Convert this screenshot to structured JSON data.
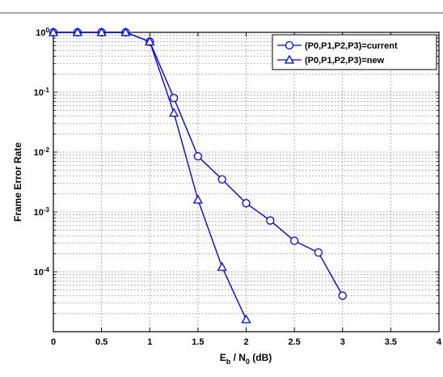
{
  "chart_data": {
    "type": "line",
    "title": "",
    "xlabel_main": "E",
    "xlabel_sub1": "b",
    "xlabel_mid": " / N",
    "xlabel_sub2": "0",
    "xlabel_tail": " (dB)",
    "ylabel": "Frame Error Rate",
    "x_scale": "linear",
    "y_scale": "log",
    "xlim": [
      0,
      4
    ],
    "ylim": [
      1e-05,
      1
    ],
    "grid": true,
    "legend_position": "top-right",
    "x_ticks": [
      0,
      0.5,
      1,
      1.5,
      2,
      2.5,
      3,
      3.5,
      4
    ],
    "x_tick_labels": [
      "0",
      "0.5",
      "1",
      "1.5",
      "2",
      "2.5",
      "3",
      "3.5",
      "4"
    ],
    "y_ticks": [
      1,
      0.1,
      0.01,
      0.001,
      0.0001
    ],
    "y_tick_labels": [
      {
        "base": "10",
        "exp": "0"
      },
      {
        "base": "10",
        "exp": "-1"
      },
      {
        "base": "10",
        "exp": "-2"
      },
      {
        "base": "10",
        "exp": "-3"
      },
      {
        "base": "10",
        "exp": "-4"
      }
    ],
    "series": [
      {
        "name": "(P0,P1,P2,P3)=current",
        "marker": "circle",
        "color": "#0000ff",
        "x": [
          0,
          0.25,
          0.5,
          0.75,
          1,
          1.25,
          1.5,
          1.75,
          2,
          2.25,
          2.5,
          2.75,
          3
        ],
        "y": [
          1,
          1,
          1,
          1,
          0.7,
          0.08,
          0.0085,
          0.0035,
          0.0014,
          0.00072,
          0.00033,
          0.00021,
          4e-05
        ]
      },
      {
        "name": "(P0,P1,P2,P3)=new",
        "marker": "triangle",
        "color": "#0000ff",
        "x": [
          0,
          0.25,
          0.5,
          0.75,
          1,
          1.25,
          1.5,
          1.75,
          2
        ],
        "y": [
          1,
          1,
          1,
          1,
          0.7,
          0.045,
          0.0016,
          0.00012,
          1.6e-05
        ]
      }
    ]
  }
}
